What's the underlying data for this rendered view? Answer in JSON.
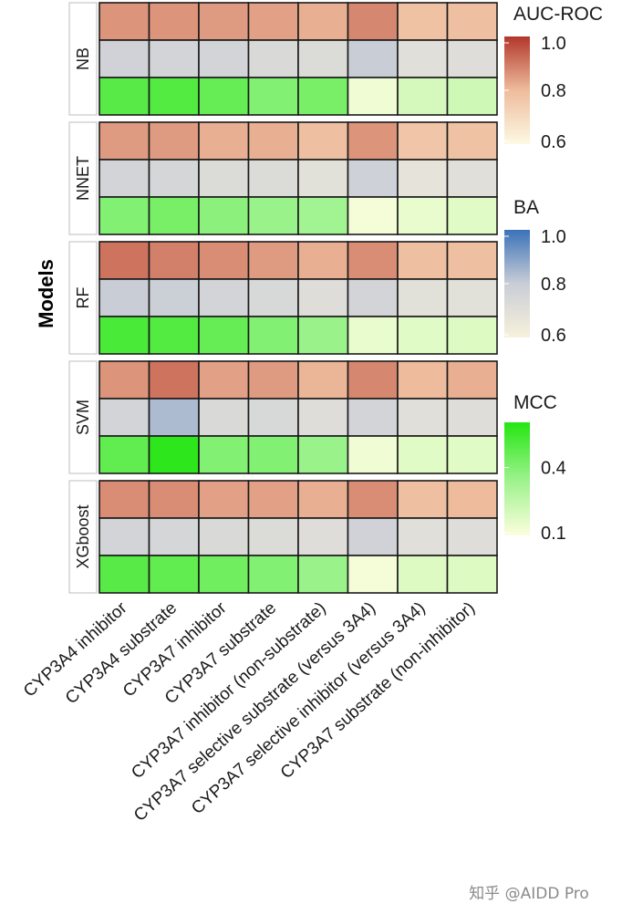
{
  "chart_data": {
    "type": "heatmap",
    "ylabel": "Models",
    "categories": [
      "CYP3A4 inhibitor",
      "CYP3A4 substrate",
      "CYP3A7 inhibitor",
      "CYP3A7 substrate",
      "CYP3A7 inhibitor (non-substrate)",
      "CYP3A7 selective substrate (versus 3A4)",
      "CYP3A7 selective inhibitor (versus 3A4)",
      "CYP3A7 substrate (non-inhibitor)"
    ],
    "metrics": [
      "AUC-ROC",
      "BA",
      "MCC"
    ],
    "models": [
      {
        "name": "NB",
        "AUC-ROC": [
          0.86,
          0.86,
          0.85,
          0.84,
          0.82,
          0.88,
          0.78,
          0.79
        ],
        "BA": [
          0.77,
          0.76,
          0.76,
          0.73,
          0.72,
          0.8,
          0.7,
          0.71
        ],
        "MCC": [
          0.49,
          0.5,
          0.46,
          0.4,
          0.42,
          0.13,
          0.2,
          0.22
        ]
      },
      {
        "name": "NNET",
        "AUC-ROC": [
          0.85,
          0.85,
          0.82,
          0.82,
          0.79,
          0.86,
          0.77,
          0.78
        ],
        "BA": [
          0.76,
          0.75,
          0.72,
          0.72,
          0.69,
          0.78,
          0.68,
          0.7
        ],
        "MCC": [
          0.4,
          0.42,
          0.38,
          0.35,
          0.33,
          0.12,
          0.15,
          0.17
        ]
      },
      {
        "name": "RF",
        "AUC-ROC": [
          0.91,
          0.89,
          0.87,
          0.85,
          0.82,
          0.87,
          0.79,
          0.79
        ],
        "BA": [
          0.8,
          0.79,
          0.76,
          0.74,
          0.71,
          0.76,
          0.69,
          0.69
        ],
        "MCC": [
          0.52,
          0.5,
          0.46,
          0.4,
          0.35,
          0.15,
          0.17,
          0.18
        ]
      },
      {
        "name": "SVM",
        "AUC-ROC": [
          0.86,
          0.91,
          0.84,
          0.85,
          0.81,
          0.88,
          0.8,
          0.82
        ],
        "BA": [
          0.76,
          0.84,
          0.73,
          0.74,
          0.71,
          0.76,
          0.7,
          0.71
        ],
        "MCC": [
          0.47,
          0.58,
          0.4,
          0.4,
          0.35,
          0.13,
          0.17,
          0.17
        ]
      },
      {
        "name": "XGboost",
        "AUC-ROC": [
          0.87,
          0.87,
          0.84,
          0.84,
          0.82,
          0.87,
          0.79,
          0.8
        ],
        "BA": [
          0.76,
          0.75,
          0.73,
          0.72,
          0.71,
          0.77,
          0.7,
          0.71
        ],
        "MCC": [
          0.49,
          0.47,
          0.44,
          0.4,
          0.35,
          0.12,
          0.18,
          0.18
        ]
      }
    ],
    "legends": [
      {
        "title": "AUC-ROC",
        "ticks": [
          "1.0",
          "0.8",
          "0.6"
        ],
        "range": [
          0.6,
          1.0
        ],
        "low": "#fdf9e3",
        "mid": "#eebc9d",
        "high": "#b2372b"
      },
      {
        "title": "BA",
        "ticks": [
          "1.0",
          "0.8",
          "0.6"
        ],
        "range": [
          0.6,
          1.0
        ],
        "low": "#f7f1dc",
        "mid": "#c9cdd6",
        "high": "#3b72b8"
      },
      {
        "title": "MCC",
        "ticks": [
          "0.4",
          "0.1"
        ],
        "range": [
          0.1,
          0.6
        ],
        "tick_values": [
          0.4,
          0.1
        ],
        "low": "#fcfede",
        "mid": "#9af28a",
        "high": "#24e612"
      }
    ],
    "legend_placement": "right"
  },
  "watermark": "知乎 @AIDD Pro"
}
